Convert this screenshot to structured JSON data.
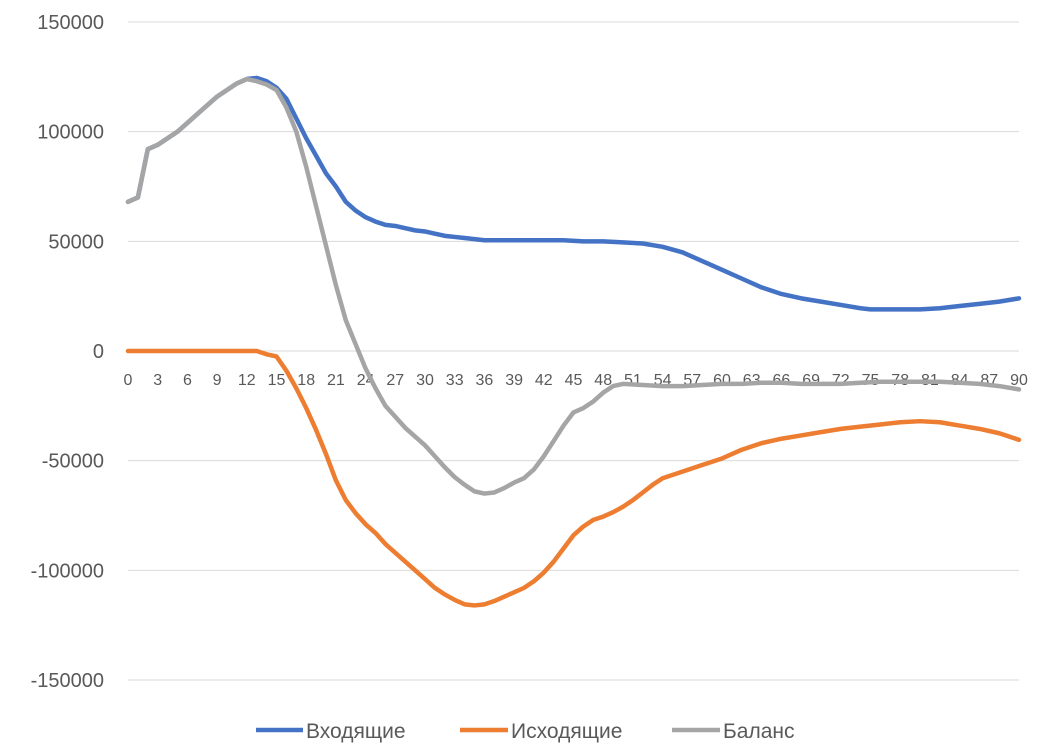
{
  "chart_data": {
    "type": "line",
    "title": "",
    "xlabel": "",
    "ylabel": "",
    "ylim": [
      -150000,
      150000
    ],
    "xlim": [
      0,
      90
    ],
    "y_ticks": [
      150000,
      100000,
      50000,
      0,
      -50000,
      -100000,
      -150000
    ],
    "y_tick_labels": [
      "150000",
      "100000",
      "50000",
      "0",
      "-50000",
      "-100000",
      "-150000"
    ],
    "x_ticks": [
      0,
      3,
      6,
      9,
      12,
      15,
      18,
      21,
      24,
      27,
      30,
      33,
      36,
      39,
      42,
      45,
      48,
      51,
      54,
      57,
      60,
      63,
      66,
      69,
      72,
      75,
      78,
      81,
      84,
      87,
      90
    ],
    "x_tick_labels": [
      "0",
      "3",
      "6",
      "9",
      "12",
      "15",
      "18",
      "21",
      "24",
      "27",
      "30",
      "33",
      "36",
      "39",
      "42",
      "45",
      "48",
      "51",
      "54",
      "57",
      "60",
      "63",
      "66",
      "69",
      "72",
      "75",
      "78",
      "81",
      "84",
      "87",
      "90"
    ],
    "grid": "horizontal",
    "legend_position": "bottom",
    "series": [
      {
        "name": "Входящие",
        "color": "#4472C4",
        "points": [
          [
            0,
            68000
          ],
          [
            1,
            70000
          ],
          [
            2,
            92000
          ],
          [
            3,
            94000
          ],
          [
            4,
            97000
          ],
          [
            5,
            100000
          ],
          [
            6,
            104000
          ],
          [
            7,
            108000
          ],
          [
            8,
            112000
          ],
          [
            9,
            116000
          ],
          [
            10,
            119000
          ],
          [
            11,
            122000
          ],
          [
            12,
            124000
          ],
          [
            13,
            124500
          ],
          [
            14,
            123000
          ],
          [
            15,
            120000
          ],
          [
            16,
            115000
          ],
          [
            17,
            106000
          ],
          [
            18,
            97000
          ],
          [
            19,
            89000
          ],
          [
            20,
            81000
          ],
          [
            21,
            75000
          ],
          [
            22,
            68000
          ],
          [
            23,
            64000
          ],
          [
            24,
            61000
          ],
          [
            25,
            59000
          ],
          [
            26,
            57500
          ],
          [
            27,
            57000
          ],
          [
            28,
            56000
          ],
          [
            29,
            55000
          ],
          [
            30,
            54500
          ],
          [
            31,
            53500
          ],
          [
            32,
            52500
          ],
          [
            33,
            52000
          ],
          [
            34,
            51500
          ],
          [
            35,
            51000
          ],
          [
            36,
            50500
          ],
          [
            38,
            50500
          ],
          [
            40,
            50500
          ],
          [
            42,
            50500
          ],
          [
            44,
            50500
          ],
          [
            46,
            50000
          ],
          [
            48,
            50000
          ],
          [
            50,
            49500
          ],
          [
            52,
            49000
          ],
          [
            54,
            47500
          ],
          [
            56,
            45000
          ],
          [
            58,
            41000
          ],
          [
            60,
            37000
          ],
          [
            62,
            33000
          ],
          [
            64,
            29000
          ],
          [
            66,
            26000
          ],
          [
            68,
            24000
          ],
          [
            70,
            22500
          ],
          [
            72,
            21000
          ],
          [
            74,
            19500
          ],
          [
            75,
            19000
          ],
          [
            76,
            19000
          ],
          [
            78,
            19000
          ],
          [
            80,
            19000
          ],
          [
            82,
            19500
          ],
          [
            84,
            20500
          ],
          [
            86,
            21500
          ],
          [
            88,
            22500
          ],
          [
            90,
            24000
          ]
        ]
      },
      {
        "name": "Исходящие",
        "color": "#ED7D31",
        "points": [
          [
            0,
            0
          ],
          [
            5,
            0
          ],
          [
            10,
            0
          ],
          [
            12,
            0
          ],
          [
            13,
            0
          ],
          [
            14,
            -1500
          ],
          [
            15,
            -2500
          ],
          [
            16,
            -9000
          ],
          [
            17,
            -17000
          ],
          [
            18,
            -26000
          ],
          [
            19,
            -36000
          ],
          [
            20,
            -47000
          ],
          [
            21,
            -59000
          ],
          [
            22,
            -68000
          ],
          [
            23,
            -74000
          ],
          [
            24,
            -79000
          ],
          [
            25,
            -83000
          ],
          [
            26,
            -88000
          ],
          [
            27,
            -92000
          ],
          [
            28,
            -96000
          ],
          [
            29,
            -100000
          ],
          [
            30,
            -104000
          ],
          [
            31,
            -108000
          ],
          [
            32,
            -111000
          ],
          [
            33,
            -113500
          ],
          [
            34,
            -115500
          ],
          [
            35,
            -116000
          ],
          [
            36,
            -115500
          ],
          [
            37,
            -114000
          ],
          [
            38,
            -112000
          ],
          [
            39,
            -110000
          ],
          [
            40,
            -108000
          ],
          [
            41,
            -105000
          ],
          [
            42,
            -101000
          ],
          [
            43,
            -96000
          ],
          [
            44,
            -90000
          ],
          [
            45,
            -84000
          ],
          [
            46,
            -80000
          ],
          [
            47,
            -77000
          ],
          [
            48,
            -75500
          ],
          [
            49,
            -73500
          ],
          [
            50,
            -71000
          ],
          [
            51,
            -68000
          ],
          [
            52,
            -64500
          ],
          [
            53,
            -61000
          ],
          [
            54,
            -58000
          ],
          [
            56,
            -55000
          ],
          [
            58,
            -52000
          ],
          [
            60,
            -49000
          ],
          [
            62,
            -45000
          ],
          [
            64,
            -42000
          ],
          [
            66,
            -40000
          ],
          [
            68,
            -38500
          ],
          [
            70,
            -37000
          ],
          [
            72,
            -35500
          ],
          [
            74,
            -34500
          ],
          [
            76,
            -33500
          ],
          [
            78,
            -32500
          ],
          [
            80,
            -32000
          ],
          [
            82,
            -32500
          ],
          [
            84,
            -34000
          ],
          [
            86,
            -35500
          ],
          [
            88,
            -37500
          ],
          [
            90,
            -40500
          ]
        ]
      },
      {
        "name": "Баланс",
        "color": "#A5A5A5",
        "points": [
          [
            0,
            68000
          ],
          [
            1,
            70000
          ],
          [
            2,
            92000
          ],
          [
            3,
            94000
          ],
          [
            4,
            97000
          ],
          [
            5,
            100000
          ],
          [
            6,
            104000
          ],
          [
            7,
            108000
          ],
          [
            8,
            112000
          ],
          [
            9,
            116000
          ],
          [
            10,
            119000
          ],
          [
            11,
            122000
          ],
          [
            12,
            124000
          ],
          [
            13,
            123000
          ],
          [
            14,
            121500
          ],
          [
            15,
            119000
          ],
          [
            16,
            111000
          ],
          [
            17,
            100000
          ],
          [
            18,
            84000
          ],
          [
            19,
            66000
          ],
          [
            20,
            48000
          ],
          [
            21,
            30000
          ],
          [
            22,
            14000
          ],
          [
            23,
            3000
          ],
          [
            24,
            -8000
          ],
          [
            25,
            -17000
          ],
          [
            26,
            -25000
          ],
          [
            27,
            -30000
          ],
          [
            28,
            -35000
          ],
          [
            29,
            -39000
          ],
          [
            30,
            -43000
          ],
          [
            31,
            -48000
          ],
          [
            32,
            -53000
          ],
          [
            33,
            -57500
          ],
          [
            34,
            -61000
          ],
          [
            35,
            -64000
          ],
          [
            36,
            -65000
          ],
          [
            37,
            -64500
          ],
          [
            38,
            -62500
          ],
          [
            39,
            -60000
          ],
          [
            40,
            -58000
          ],
          [
            41,
            -54000
          ],
          [
            42,
            -48000
          ],
          [
            43,
            -41000
          ],
          [
            44,
            -34000
          ],
          [
            45,
            -28000
          ],
          [
            46,
            -26000
          ],
          [
            47,
            -23000
          ],
          [
            48,
            -19000
          ],
          [
            49,
            -16000
          ],
          [
            50,
            -15000
          ],
          [
            52,
            -15500
          ],
          [
            54,
            -16000
          ],
          [
            56,
            -16000
          ],
          [
            58,
            -15500
          ],
          [
            60,
            -15000
          ],
          [
            62,
            -15000
          ],
          [
            64,
            -14500
          ],
          [
            66,
            -14500
          ],
          [
            68,
            -15000
          ],
          [
            70,
            -15000
          ],
          [
            72,
            -15000
          ],
          [
            74,
            -14500
          ],
          [
            76,
            -14000
          ],
          [
            78,
            -14000
          ],
          [
            80,
            -14000
          ],
          [
            82,
            -14000
          ],
          [
            84,
            -14500
          ],
          [
            86,
            -15000
          ],
          [
            88,
            -16000
          ],
          [
            90,
            -17500
          ]
        ]
      }
    ]
  }
}
